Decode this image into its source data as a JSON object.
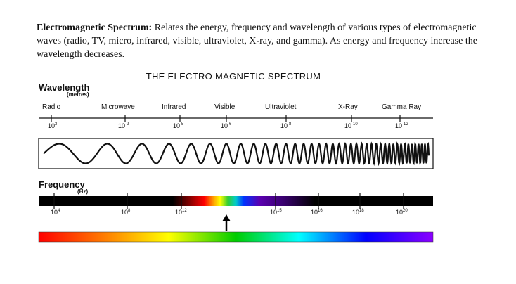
{
  "paragraph": {
    "heading": "Electromagnetic Spectrum:",
    "text": " Relates the energy, frequency and wavelength of various types of electromagnetic waves (radio, TV, micro, infrared, visible, ultraviolet, X-ray, and gamma). As energy and frequency increase the wavelength decreases."
  },
  "diagram": {
    "title": "THE ELECTRO MAGNETIC SPECTRUM",
    "wavelength_label": "Wavelength",
    "wavelength_unit": "(metres)",
    "frequency_label": "Frequency",
    "frequency_unit": "(Hz)",
    "categories": [
      "Radio",
      "Microwave",
      "Infrared",
      "Visible",
      "Ultraviolet",
      "X-Ray",
      "Gamma Ray"
    ],
    "wavelength_values": [
      {
        "base": "10",
        "exp": "3"
      },
      {
        "base": "10",
        "exp": "-2"
      },
      {
        "base": "10",
        "exp": "-5"
      },
      {
        "base": "10",
        "exp": "-6"
      },
      {
        "base": "10",
        "exp": "-8"
      },
      {
        "base": "10",
        "exp": "-10"
      },
      {
        "base": "10",
        "exp": "-12"
      }
    ],
    "frequency_values": [
      {
        "base": "10",
        "exp": "4"
      },
      {
        "base": "10",
        "exp": "8"
      },
      {
        "base": "10",
        "exp": "12"
      },
      {
        "base": "10",
        "exp": "15"
      },
      {
        "base": "10",
        "exp": "16"
      },
      {
        "base": "10",
        "exp": "18"
      },
      {
        "base": "10",
        "exp": "20"
      }
    ],
    "colors": {
      "spectrum": [
        "#ff0000",
        "#ff7f00",
        "#ffff00",
        "#00cc00",
        "#00ffff",
        "#0000ff",
        "#8b00ff"
      ],
      "ink": "#111111"
    }
  }
}
